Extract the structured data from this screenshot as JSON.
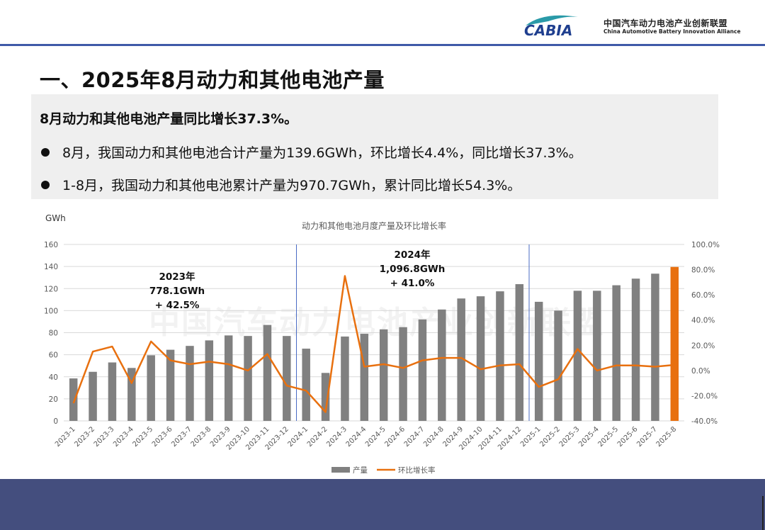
{
  "header": {
    "logo_text": "CABIA",
    "org_name_cn": "中国汽车动力电池产业创新联盟",
    "org_name_en": "China Automotive Battery Innovation Alliance"
  },
  "title": "一、2025年8月动力和其他电池产量",
  "summary": {
    "headline": "8月动力和其他电池产量同比增长37.3%。",
    "bullets": [
      "8月，我国动力和其他电池合计产量为139.6GWh，环比增长4.4%，同比增长37.3%。",
      "1-8月，我国动力和其他电池累计产量为970.7GWh，累计同比增长54.3%。"
    ]
  },
  "watermark": "中国汽车动力电池产业创新联盟",
  "colors": {
    "bar": "#808080",
    "bar_highlight": "#e8700f",
    "line": "#e8700f",
    "divider": "#4a6bc4",
    "header_rule": "#3f5aa8",
    "footer": "#444e7e"
  },
  "chart_data": {
    "type": "bar",
    "title": "动力和其他电池月度产量及环比增长率",
    "ylabel": "GWh",
    "ylim": [
      0,
      160
    ],
    "y_ticks": [
      0,
      20,
      40,
      60,
      80,
      100,
      120,
      140,
      160
    ],
    "y2lim": [
      -40,
      100
    ],
    "y2_ticks": [
      "-40.0%",
      "-20.0%",
      "0.0%",
      "20.0%",
      "40.0%",
      "60.0%",
      "80.0%",
      "100.0%"
    ],
    "categories": [
      "2023-1",
      "2023-2",
      "2023-3",
      "2023-4",
      "2023-5",
      "2023-6",
      "2023-7",
      "2023-8",
      "2023-9",
      "2023-10",
      "2023-11",
      "2023-12",
      "2024-1",
      "2024-2",
      "2024-3",
      "2024-4",
      "2024-5",
      "2024-6",
      "2024-7",
      "2024-8",
      "2024-9",
      "2024-10",
      "2024-11",
      "2024-12",
      "2025-1",
      "2025-2",
      "2025-3",
      "2025-4",
      "2025-5",
      "2025-6",
      "2025-7",
      "2025-8"
    ],
    "series": [
      {
        "name": "产量",
        "type": "bar",
        "values": [
          38.5,
          44.5,
          53,
          48,
          59.5,
          64.5,
          68,
          73,
          77.5,
          77,
          87,
          77,
          65.5,
          43.5,
          76.5,
          79,
          83,
          85,
          92,
          101,
          111,
          113,
          117.5,
          124,
          108,
          100,
          118,
          118,
          123,
          129,
          133.5,
          139.6
        ]
      },
      {
        "name": "环比增长率",
        "type": "line",
        "axis": "right",
        "values": [
          -26,
          15,
          19,
          -10,
          23,
          8,
          5,
          7,
          5,
          0,
          13,
          -12,
          -16,
          -33,
          75,
          3,
          5,
          2,
          8,
          10,
          10,
          1,
          4,
          5,
          -13,
          -7,
          17,
          0,
          4,
          4,
          3,
          4.4
        ]
      }
    ],
    "highlight_index": 31,
    "annotations": [
      {
        "year": "2023年",
        "total": "778.1GWh",
        "growth": "+ 42.5%"
      },
      {
        "year": "2024年",
        "total": "1,096.8GWh",
        "growth": "+ 41.0%"
      }
    ],
    "grid": true,
    "legend": "bottom"
  }
}
